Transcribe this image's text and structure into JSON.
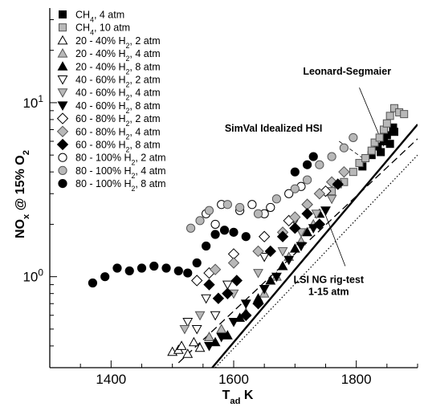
{
  "chart_data": {
    "type": "scatter",
    "title": "",
    "xlabel": "T",
    "xlabel_sub": "ad",
    "xlabel_unit": " K",
    "ylabel_parts": [
      "NO",
      "x",
      " @ 15% O",
      "2"
    ],
    "xlim": [
      1300,
      1900
    ],
    "ylim_log": [
      0.3,
      35
    ],
    "y_scale": "log",
    "x_ticks": [
      1400,
      1600,
      1800
    ],
    "x_tick_labels": [
      "1400",
      "1600",
      "1800"
    ],
    "y_ticks": [
      1,
      10
    ],
    "y_tick_labels": [
      {
        "base": "10",
        "exp": "0"
      },
      {
        "base": "10",
        "exp": "1"
      }
    ],
    "grid": false,
    "legend_position": "top-left",
    "series": [
      {
        "name": "CH4, 4 atm",
        "label_parts": [
          "CH",
          "4",
          ", 4 atm"
        ],
        "marker": "square",
        "fill": "#000000",
        "stroke": "#000000",
        "x": [
          1810,
          1825,
          1835,
          1840,
          1845,
          1850,
          1855,
          1860,
          1862
        ],
        "y": [
          4.3,
          5.0,
          5.6,
          5.2,
          6.0,
          6.5,
          5.8,
          7.2,
          6.8
        ]
      },
      {
        "name": "CH4, 10 atm",
        "label_parts": [
          "CH",
          "4",
          ", 10 atm"
        ],
        "marker": "square",
        "fill": "#b8b8b8",
        "stroke": "#555555",
        "x": [
          1780,
          1795,
          1805,
          1815,
          1825,
          1830,
          1838,
          1845,
          1850,
          1855,
          1862,
          1870,
          1878,
          1760,
          1770
        ],
        "y": [
          3.5,
          4.0,
          4.5,
          4.8,
          5.3,
          5.9,
          6.3,
          7.0,
          7.6,
          8.4,
          9.3,
          8.8,
          8.6,
          3.1,
          3.4
        ]
      },
      {
        "name": "20 - 40% H2, 2 atm",
        "label_parts": [
          "20 - 40% H",
          "2",
          ", 2 atm"
        ],
        "marker": "triangle-up",
        "fill": "#ffffff",
        "stroke": "#000000",
        "x": [
          1500,
          1510,
          1515,
          1525,
          1535,
          1545,
          1560
        ],
        "y": [
          0.37,
          0.38,
          0.4,
          0.36,
          0.42,
          0.39,
          0.45
        ]
      },
      {
        "name": "20 - 40% H2, 4 atm",
        "label_parts": [
          "20 - 40% H",
          "2",
          ", 4 atm"
        ],
        "marker": "triangle-up",
        "fill": "#b8b8b8",
        "stroke": "#555555",
        "x": [
          1560,
          1580,
          1620,
          1650,
          1670,
          1690,
          1710,
          1730
        ],
        "y": [
          0.45,
          0.5,
          0.62,
          0.8,
          1.0,
          1.3,
          1.6,
          2.0
        ]
      },
      {
        "name": "20 - 40% H2, 8 atm",
        "label_parts": [
          "20 - 40% H",
          "2",
          ", 8 atm"
        ],
        "marker": "triangle-up",
        "fill": "#000000",
        "stroke": "#000000",
        "x": [
          1570,
          1590,
          1610,
          1640,
          1660,
          1680,
          1700,
          1720,
          1740
        ],
        "y": [
          0.42,
          0.46,
          0.58,
          0.75,
          0.95,
          1.15,
          1.45,
          1.8,
          2.3
        ]
      },
      {
        "name": "40 - 60% H2, 2 atm",
        "label_parts": [
          "40 - 60% H",
          "2",
          ", 2 atm"
        ],
        "marker": "triangle-down",
        "fill": "#ffffff",
        "stroke": "#000000",
        "x": [
          1525,
          1540,
          1555,
          1570,
          1590,
          1650,
          1700
        ],
        "y": [
          0.55,
          0.5,
          0.75,
          0.6,
          0.9,
          1.3,
          2.1
        ]
      },
      {
        "name": "40 - 60% H2, 4 atm",
        "label_parts": [
          "40 - 60% H",
          "2",
          ", 4 atm"
        ],
        "marker": "triangle-down",
        "fill": "#b8b8b8",
        "stroke": "#555555",
        "x": [
          1520,
          1545,
          1600,
          1640,
          1680,
          1710,
          1735,
          1760
        ],
        "y": [
          0.5,
          0.6,
          0.8,
          1.05,
          1.4,
          1.8,
          2.3,
          2.8
        ]
      },
      {
        "name": "40 - 60% H2, 8 atm",
        "label_parts": [
          "40 - 60% H",
          "2",
          ", 8 atm"
        ],
        "marker": "triangle-down",
        "fill": "#000000",
        "stroke": "#000000",
        "x": [
          1560,
          1580,
          1600,
          1620,
          1650,
          1670,
          1690,
          1710,
          1730,
          1750
        ],
        "y": [
          0.4,
          0.45,
          0.55,
          0.7,
          0.85,
          1.0,
          1.25,
          1.5,
          1.9,
          2.4
        ]
      },
      {
        "name": "60 - 80% H2, 2 atm",
        "label_parts": [
          "60 - 80% H",
          "2",
          ", 2 atm"
        ],
        "marker": "diamond",
        "fill": "#ffffff",
        "stroke": "#000000",
        "x": [
          1540,
          1560,
          1600,
          1650,
          1690,
          1720,
          1750
        ],
        "y": [
          0.95,
          1.05,
          1.35,
          1.7,
          2.1,
          2.6,
          3.1
        ]
      },
      {
        "name": "60 - 80% H2, 4 atm",
        "label_parts": [
          "60 - 80% H",
          "2",
          ", 4 atm"
        ],
        "marker": "diamond",
        "fill": "#b8b8b8",
        "stroke": "#555555",
        "x": [
          1570,
          1600,
          1640,
          1680,
          1700,
          1720,
          1740,
          1760,
          1780
        ],
        "y": [
          1.1,
          1.2,
          1.4,
          1.8,
          2.2,
          2.6,
          3.0,
          3.5,
          4.0
        ]
      },
      {
        "name": "60 - 80% H2, 8 atm",
        "label_parts": [
          "60 - 80% H",
          "2",
          ", 8 atm"
        ],
        "marker": "diamond",
        "fill": "#000000",
        "stroke": "#000000",
        "x": [
          1560,
          1575,
          1590,
          1605,
          1620,
          1640,
          1660,
          1680,
          1700,
          1720,
          1740,
          1770
        ],
        "y": [
          0.9,
          0.75,
          0.8,
          0.95,
          0.6,
          0.7,
          1.4,
          1.7,
          1.9,
          2.3,
          2.0,
          3.4
        ]
      },
      {
        "name": "80 - 100% H2, 2 atm",
        "label_parts": [
          "80 - 100% H",
          "2",
          ", 2 atm"
        ],
        "marker": "circle",
        "fill": "#ffffff",
        "stroke": "#000000",
        "x": [
          1555,
          1570,
          1580,
          1610,
          1630,
          1650,
          1660,
          1690,
          1710
        ],
        "y": [
          2.3,
          2.0,
          2.6,
          2.4,
          2.6,
          2.3,
          2.5,
          3.0,
          3.3
        ]
      },
      {
        "name": "80 - 100% H2, 4 atm",
        "label_parts": [
          "80 - 100% H",
          "2",
          ", 4 atm"
        ],
        "marker": "circle",
        "fill": "#b8b8b8",
        "stroke": "#555555",
        "x": [
          1530,
          1545,
          1560,
          1590,
          1610,
          1640,
          1670,
          1700,
          1720,
          1740,
          1760,
          1780,
          1795
        ],
        "y": [
          1.9,
          2.1,
          2.4,
          2.6,
          2.5,
          2.3,
          2.8,
          3.2,
          3.6,
          4.4,
          4.9,
          5.5,
          6.3
        ]
      },
      {
        "name": "80 - 100% H2, 8 atm",
        "label_parts": [
          "80 - 100% H",
          "2",
          ", 8 atm"
        ],
        "marker": "circle",
        "fill": "#000000",
        "stroke": "#000000",
        "x": [
          1370,
          1390,
          1410,
          1430,
          1450,
          1470,
          1490,
          1510,
          1525,
          1540,
          1555,
          1570,
          1585,
          1600,
          1620,
          1700,
          1720,
          1730
        ],
        "y": [
          0.92,
          1.0,
          1.12,
          1.08,
          1.12,
          1.15,
          1.12,
          1.08,
          1.05,
          1.2,
          1.5,
          1.75,
          1.85,
          1.8,
          1.7,
          4.0,
          4.4,
          4.9
        ]
      }
    ],
    "lines": [
      {
        "name": "Leonard-Segmaier",
        "style": "solid",
        "width": 2.4,
        "x": [
          1565,
          1900
        ],
        "y": [
          0.3,
          7.5
        ]
      },
      {
        "name": "SimVal Idealized HSI",
        "style": "dashed",
        "width": 1.3,
        "x": [
          1510,
          1900
        ],
        "y": [
          0.32,
          6.2
        ]
      },
      {
        "name": "LSI NG rig-test 1-15 atm",
        "style": "dotted",
        "width": 1.2,
        "x": [
          1570,
          1900
        ],
        "y": [
          0.3,
          5.0
        ]
      }
    ],
    "annotations": [
      {
        "lines": [
          "Leonard-Segmaier"
        ],
        "x": 1785,
        "y": 14.5
      },
      {
        "lines": [
          "SimVal Idealized HSI"
        ],
        "x": 1665,
        "y": 6.8
      },
      {
        "lines": [
          "LSI NG rig-test",
          "1-15 atm"
        ],
        "x": 1755,
        "y": 0.92
      }
    ],
    "leaders": [
      {
        "from": [
          1805,
          12.2
        ],
        "to": [
          1845,
          5.6
        ],
        "style": "solid"
      },
      {
        "from": [
          1772,
          6.0
        ],
        "to": [
          1818,
          4.6
        ],
        "style": "dashed"
      },
      {
        "from": [
          1782,
          1.15
        ],
        "to": [
          1745,
          2.5
        ],
        "style": "solid"
      }
    ]
  }
}
